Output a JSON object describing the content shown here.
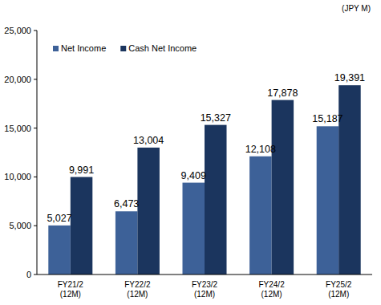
{
  "chart_data": {
    "type": "bar",
    "ylabel": "(JPY M)",
    "categories": [
      "FY21/2 (12M)",
      "FY22/2 (12M)",
      "FY23/2 (12M)",
      "FY24/2 (12M)",
      "FY25/2 (12M)"
    ],
    "series": [
      {
        "name": "Net Income",
        "color": "#3d6198",
        "values": [
          5027,
          6473,
          9409,
          12108,
          15187
        ],
        "value_labels": [
          "5,027",
          "6,473",
          "9,409",
          "12,108",
          "15,187"
        ]
      },
      {
        "name": "Cash Net Income",
        "color": "#1b355e",
        "values": [
          9991,
          13004,
          15327,
          17878,
          19391
        ],
        "value_labels": [
          "9,991",
          "13,004",
          "15,327",
          "17,878",
          "19,391"
        ]
      }
    ],
    "ylim": [
      0,
      25000
    ],
    "yticks": [
      0,
      {
        "value": 5000,
        "label": "5,000"
      },
      {
        "value": 10000,
        "label": "10,000"
      },
      {
        "value": 15000,
        "label": "15,000"
      },
      {
        "value": 20000,
        "label": "20,000"
      },
      {
        "value": 25000,
        "label": "25,000"
      }
    ],
    "grid": false,
    "legend": "top-left",
    "data_labels": true
  }
}
